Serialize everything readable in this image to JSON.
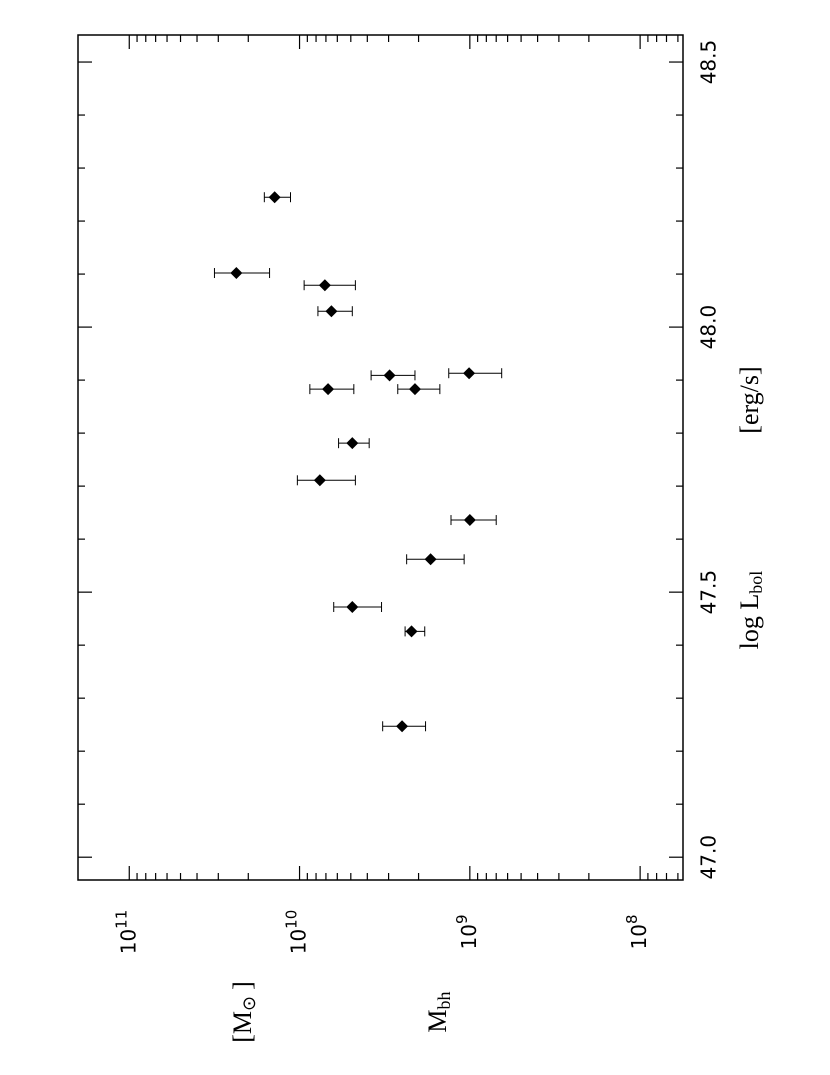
{
  "chart_data": {
    "type": "scatter",
    "xlabel": {
      "text": "log L",
      "sub": "bol",
      "unit": "[erg/s]"
    },
    "ylabel": {
      "text": "M",
      "sub": "bh",
      "unit": "[M",
      "unit_sub": "⊙",
      "unit_end": "]"
    },
    "x": [
      48.245,
      48.102,
      48.079,
      48.03,
      47.909,
      47.913,
      47.883,
      47.883,
      47.781,
      47.711,
      47.636,
      47.562,
      47.472,
      47.426,
      47.247
    ],
    "series": [
      {
        "color": "#000000",
        "marker": "diamond",
        "values": [
          14000000000,
          23500000000,
          7100000000,
          6500000000,
          2960000000,
          1010000000,
          6800000000,
          2100000000,
          4900000000,
          7600000000,
          1000000000,
          1700000000,
          4900000000,
          2200000000,
          2500000000
        ],
        "err_high": [
          16100000000,
          31600000000,
          9400000000,
          7800000000,
          3800000000,
          1330000000,
          8700000000,
          2650000000,
          5900000000,
          10300000000,
          1290000000,
          2350000000,
          6300000000,
          2400000000,
          3250000000
        ],
        "err_low": [
          11300000000,
          15000000000,
          4700000000,
          4900000000,
          2100000000,
          650000000,
          4800000000,
          1500000000,
          3900000000,
          4700000000,
          700000000,
          1080000000,
          3300000000,
          1840000000,
          1820000000
        ]
      }
    ],
    "xlim": [
      46.957,
      48.551
    ],
    "xticks": [
      {
        "value": 47.0,
        "label": "47.0"
      },
      {
        "value": 47.5,
        "label": "47.5"
      },
      {
        "value": 48.0,
        "label": "48.0"
      },
      {
        "value": 48.5,
        "label": "48.5"
      }
    ],
    "xticks_minor": [
      47.1,
      47.2,
      47.3,
      47.4,
      47.6,
      47.7,
      47.8,
      47.9,
      48.1,
      48.2,
      48.3,
      48.4
    ],
    "ylim": [
      56000000,
      200000000000
    ],
    "ylog": true,
    "yticks": [
      {
        "value": 100000000,
        "label": "10",
        "sup": "8"
      },
      {
        "value": 1000000000,
        "label": "10",
        "sup": "9"
      },
      {
        "value": 10000000000,
        "label": "10",
        "sup": "10"
      },
      {
        "value": 100000000000,
        "label": "10",
        "sup": "11"
      }
    ],
    "yticks_minor": [
      60000000,
      70000000,
      80000000,
      90000000,
      200000000,
      300000000,
      400000000,
      500000000,
      600000000,
      700000000,
      800000000,
      900000000,
      2000000000,
      3000000000,
      4000000000,
      5000000000,
      6000000000,
      7000000000,
      8000000000,
      9000000000,
      20000000000,
      30000000000,
      40000000000,
      50000000000,
      60000000000,
      70000000000,
      80000000000,
      90000000000
    ],
    "rotated": true
  }
}
